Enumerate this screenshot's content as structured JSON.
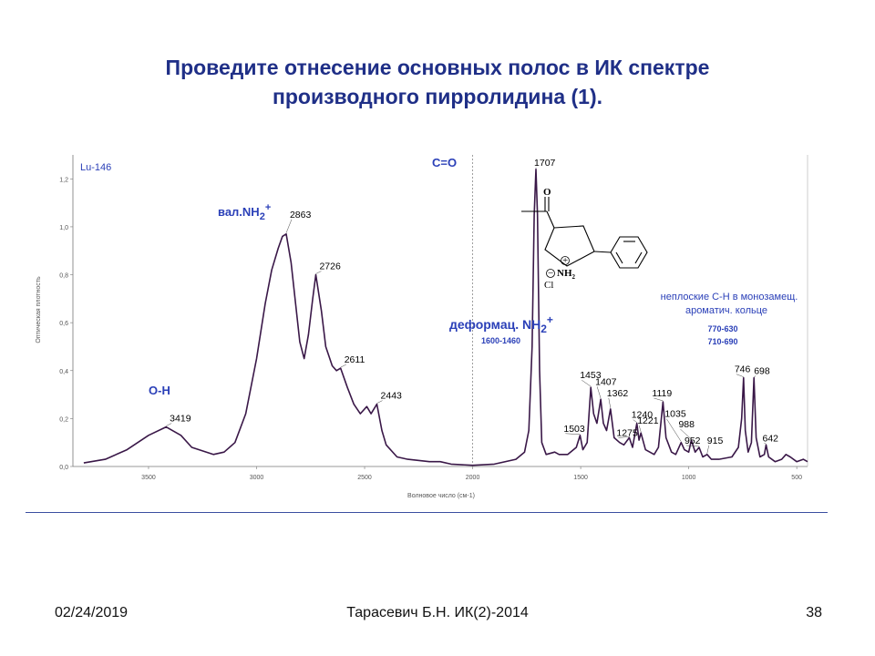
{
  "slide": {
    "title_line1": "Проведите отнесение основных полос в ИК спектре",
    "title_line2": "производного пирролидина (1)."
  },
  "footer": {
    "date": "02/24/2019",
    "author": "Тарасевич Б.Н. ИК(2)-2014",
    "page": "38"
  },
  "chart_data": {
    "type": "line",
    "sample_label": "Lu-146",
    "xlabel": "Волновое число (см-1)",
    "ylabel": "Оптическая плотность",
    "x_range": [
      4000,
      400
    ],
    "x_reversed": true,
    "ylim": [
      0.0,
      1.3
    ],
    "x_ticks": [
      3500,
      3000,
      2500,
      2000,
      1500,
      1000,
      500
    ],
    "y_ticks": [
      0.0,
      0.2,
      0.4,
      0.6,
      0.8,
      1.0,
      1.2
    ],
    "y_tick_labels": [
      "0,0",
      "0,2",
      "0,4",
      "0,6",
      "0,8",
      "1,0",
      "1,2"
    ],
    "series": [
      {
        "color": "#3a1848",
        "points": [
          [
            3950,
            0.01
          ],
          [
            3800,
            0.015
          ],
          [
            3700,
            0.03
          ],
          [
            3600,
            0.07
          ],
          [
            3500,
            0.13
          ],
          [
            3419,
            0.165
          ],
          [
            3350,
            0.13
          ],
          [
            3300,
            0.08
          ],
          [
            3200,
            0.05
          ],
          [
            3150,
            0.06
          ],
          [
            3100,
            0.1
          ],
          [
            3050,
            0.22
          ],
          [
            3000,
            0.45
          ],
          [
            2960,
            0.68
          ],
          [
            2930,
            0.82
          ],
          [
            2900,
            0.91
          ],
          [
            2880,
            0.96
          ],
          [
            2863,
            0.97
          ],
          [
            2840,
            0.85
          ],
          [
            2800,
            0.52
          ],
          [
            2780,
            0.45
          ],
          [
            2760,
            0.55
          ],
          [
            2740,
            0.7
          ],
          [
            2726,
            0.8
          ],
          [
            2700,
            0.65
          ],
          [
            2680,
            0.5
          ],
          [
            2650,
            0.42
          ],
          [
            2630,
            0.4
          ],
          [
            2611,
            0.41
          ],
          [
            2580,
            0.33
          ],
          [
            2550,
            0.26
          ],
          [
            2520,
            0.22
          ],
          [
            2490,
            0.25
          ],
          [
            2470,
            0.22
          ],
          [
            2443,
            0.26
          ],
          [
            2420,
            0.15
          ],
          [
            2400,
            0.09
          ],
          [
            2350,
            0.04
          ],
          [
            2300,
            0.03
          ],
          [
            2200,
            0.02
          ],
          [
            2150,
            0.02
          ],
          [
            2100,
            0.01
          ],
          [
            2000,
            0.005
          ],
          [
            1900,
            0.01
          ],
          [
            1800,
            0.03
          ],
          [
            1760,
            0.06
          ],
          [
            1740,
            0.15
          ],
          [
            1725,
            0.5
          ],
          [
            1715,
            1.05
          ],
          [
            1707,
            1.24
          ],
          [
            1700,
            1.05
          ],
          [
            1690,
            0.4
          ],
          [
            1680,
            0.1
          ],
          [
            1660,
            0.05
          ],
          [
            1620,
            0.06
          ],
          [
            1600,
            0.05
          ],
          [
            1560,
            0.05
          ],
          [
            1520,
            0.08
          ],
          [
            1503,
            0.13
          ],
          [
            1490,
            0.07
          ],
          [
            1470,
            0.1
          ],
          [
            1453,
            0.33
          ],
          [
            1440,
            0.22
          ],
          [
            1425,
            0.18
          ],
          [
            1407,
            0.28
          ],
          [
            1395,
            0.18
          ],
          [
            1380,
            0.15
          ],
          [
            1362,
            0.24
          ],
          [
            1345,
            0.12
          ],
          [
            1320,
            0.1
          ],
          [
            1300,
            0.09
          ],
          [
            1275,
            0.12
          ],
          [
            1260,
            0.08
          ],
          [
            1240,
            0.18
          ],
          [
            1230,
            0.11
          ],
          [
            1221,
            0.14
          ],
          [
            1200,
            0.07
          ],
          [
            1160,
            0.05
          ],
          [
            1140,
            0.08
          ],
          [
            1119,
            0.27
          ],
          [
            1105,
            0.12
          ],
          [
            1080,
            0.06
          ],
          [
            1060,
            0.05
          ],
          [
            1035,
            0.1
          ],
          [
            1020,
            0.07
          ],
          [
            1000,
            0.06
          ],
          [
            988,
            0.11
          ],
          [
            970,
            0.06
          ],
          [
            952,
            0.08
          ],
          [
            935,
            0.04
          ],
          [
            915,
            0.05
          ],
          [
            895,
            0.03
          ],
          [
            860,
            0.03
          ],
          [
            800,
            0.04
          ],
          [
            770,
            0.08
          ],
          [
            755,
            0.2
          ],
          [
            746,
            0.37
          ],
          [
            738,
            0.15
          ],
          [
            725,
            0.06
          ],
          [
            710,
            0.1
          ],
          [
            698,
            0.37
          ],
          [
            688,
            0.12
          ],
          [
            670,
            0.04
          ],
          [
            650,
            0.05
          ],
          [
            642,
            0.09
          ],
          [
            630,
            0.04
          ],
          [
            600,
            0.02
          ],
          [
            570,
            0.03
          ],
          [
            550,
            0.05
          ],
          [
            530,
            0.04
          ],
          [
            500,
            0.02
          ],
          [
            470,
            0.03
          ],
          [
            450,
            0.02
          ],
          [
            420,
            0.02
          ],
          [
            400,
            0.02
          ]
        ]
      }
    ],
    "peak_labels": [
      "3419",
      "2863",
      "2726",
      "2611",
      "2443",
      "1707",
      "1503",
      "1453",
      "1407",
      "1362",
      "1275",
      "1240",
      "1221",
      "1119",
      "1035",
      "988",
      "952",
      "915",
      "746",
      "698",
      "642"
    ],
    "annotations": {
      "oh": "О-Н",
      "nh_stretch_prefix": "вал.NH",
      "nh_sub": "2",
      "nh_sup": "+",
      "co": "С=О",
      "nh_bend_prefix": "деформац. NH",
      "nh_bend_sub": "2",
      "nh_bend_sup": "+",
      "nh_bend_range": "1600-1460",
      "ch_note_line1": "неплоские С-Н в монозамещ.",
      "ch_note_line2": "ароматич. кольце",
      "ch_range1": "770-630",
      "ch_range2": "710-690"
    },
    "grid": false,
    "legend": "none"
  },
  "molecule": {
    "carbonyl_o": "O",
    "plus_sign": "+",
    "minus_sign": "−",
    "nitrogen": "NH",
    "nitrogen_sub": "2",
    "chloride": "Cl"
  }
}
